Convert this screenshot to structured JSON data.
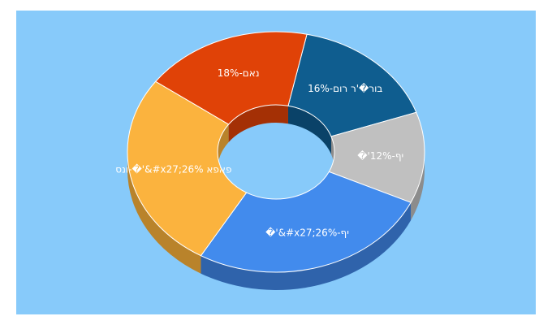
{
  "chart_data": {
    "type": "pie",
    "style": "donut-3d",
    "labels": [
      "בור�'ר רום-16%",
      "�'יף-12%",
      "�'&#x27;יף-26%",
      "ונס-�'&#x27;26% פאפא",
      "נאם-18%"
    ],
    "values": [
      16,
      12,
      26,
      26,
      18
    ],
    "colors": [
      "#0f5d8f",
      "#c0c0c0",
      "#428bed",
      "#fbb33e",
      "#e04207"
    ],
    "side_colors": [
      "#0a4268",
      "#8c8c8c",
      "#2f63ab",
      "#b9832b",
      "#a43005"
    ],
    "label_colors": [
      "#ffffff",
      "#333333",
      "#ffffff",
      "#ffffff",
      "#ffffff"
    ],
    "start_angle_deg": -78,
    "background": "#87cafa"
  }
}
